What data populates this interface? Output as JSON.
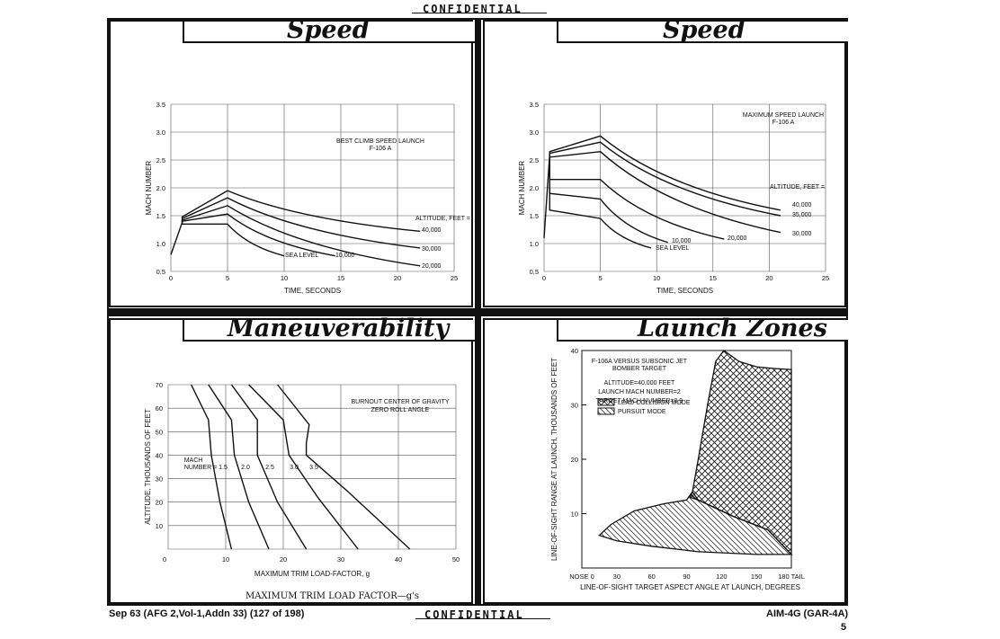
{
  "header": {
    "classification": "CONFIDENTIAL"
  },
  "footer": {
    "classification": "CONFIDENTIAL",
    "left": "Sep 63 (AFG 2,Vol-1,Addn 33) (127 of 198)",
    "right": "AIM-4G (GAR-4A)",
    "page": "5"
  },
  "panels": {
    "speed_left_title": "Speed",
    "speed_right_title": "Speed",
    "maneuver_title": "Maneuverability",
    "launch_title": "Launch Zones",
    "maneuver_caption": "MAXIMUM TRIM LOAD FACTOR—g's"
  },
  "chart_data": [
    {
      "type": "line",
      "title": "Speed",
      "note": [
        "BEST CLIMB SPEED LAUNCH",
        "F-106 A"
      ],
      "xlabel": "TIME, SECONDS",
      "ylabel": "MACH NUMBER",
      "xlim": [
        0,
        25
      ],
      "ylim": [
        0.5,
        3.5
      ],
      "xticks": [
        "0",
        "5",
        "10",
        "15",
        "20",
        "25"
      ],
      "yticks": [
        "0.5",
        "1.0",
        "1.5",
        "2.0",
        "2.5",
        "3.0",
        "3.5"
      ],
      "legend_title": "ALTITUDE, FEET =",
      "series": [
        {
          "name": "40,000",
          "x": [
            1,
            5,
            22
          ],
          "y": [
            1.48,
            1.95,
            1.22
          ]
        },
        {
          "name": "30,000",
          "x": [
            1,
            5,
            22
          ],
          "y": [
            1.45,
            1.82,
            0.92
          ]
        },
        {
          "name": "20,000",
          "x": [
            1,
            5,
            22
          ],
          "y": [
            1.42,
            1.68,
            0.6
          ]
        },
        {
          "name": "10,000",
          "x": [
            1,
            5,
            14.5
          ],
          "y": [
            1.4,
            1.53,
            0.78
          ]
        },
        {
          "name": "SEA LEVEL",
          "x": [
            1,
            5,
            10
          ],
          "y": [
            1.35,
            1.35,
            0.78
          ]
        }
      ],
      "initial": {
        "x": [
          0,
          1
        ],
        "y": [
          0.8,
          1.38
        ]
      }
    },
    {
      "type": "line",
      "title": "Speed",
      "note": [
        "MAXIMUM SPEED LAUNCH",
        "F-106 A"
      ],
      "xlabel": "TIME, SECONDS",
      "ylabel": "MACH NUMBER",
      "xlim": [
        0,
        25
      ],
      "ylim": [
        0.5,
        3.5
      ],
      "xticks": [
        "0",
        "5",
        "10",
        "15",
        "20",
        "25"
      ],
      "yticks": [
        "0.5",
        "1.0",
        "1.5",
        "2.0",
        "2.5",
        "3.0",
        "3.5"
      ],
      "legend_title": "ALTITUDE, FEET =",
      "series": [
        {
          "name": "40,000",
          "x": [
            0.5,
            5,
            21
          ],
          "y": [
            2.65,
            2.93,
            1.6
          ]
        },
        {
          "name": "35,000",
          "x": [
            0.5,
            5,
            21
          ],
          "y": [
            2.62,
            2.82,
            1.5
          ]
        },
        {
          "name": "30,000",
          "x": [
            0.5,
            5,
            21
          ],
          "y": [
            2.55,
            2.65,
            1.2
          ]
        },
        {
          "name": "20,000",
          "x": [
            0.5,
            5,
            16
          ],
          "y": [
            2.15,
            2.15,
            1.08
          ]
        },
        {
          "name": "10,000",
          "x": [
            0.5,
            5,
            11
          ],
          "y": [
            1.9,
            1.8,
            1.02
          ]
        },
        {
          "name": "SEA LEVEL",
          "x": [
            0.5,
            5,
            9.5
          ],
          "y": [
            1.6,
            1.45,
            0.92
          ]
        }
      ],
      "initial": {
        "x": [
          0,
          0.5
        ],
        "y": [
          1.1,
          2.6
        ]
      }
    },
    {
      "type": "line",
      "title": "Maneuverability",
      "note": [
        "BURNOUT CENTER OF GRAVITY",
        "ZERO ROLL ANGLE"
      ],
      "xlabel": "MAXIMUM TRIM LOAD-FACTOR, g",
      "ylabel": "ALTITUDE, THOUSANDS OF FEET",
      "xlim": [
        0,
        50
      ],
      "ylim": [
        0,
        70
      ],
      "xticks": [
        "10",
        "20",
        "30",
        "40",
        "50"
      ],
      "yticks": [
        "10",
        "20",
        "30",
        "40",
        "50",
        "60",
        "70"
      ],
      "legend_title": "MACH NUMBER =",
      "series": [
        {
          "name": "1.5",
          "x": [
            4,
            7,
            7.5,
            9,
            11
          ],
          "y": [
            70,
            55,
            40,
            20,
            0
          ]
        },
        {
          "name": "2.0",
          "x": [
            7,
            11,
            11.5,
            14,
            17.5
          ],
          "y": [
            70,
            55,
            40,
            20,
            0
          ]
        },
        {
          "name": "2.5",
          "x": [
            11,
            15.5,
            15.5,
            19,
            24
          ],
          "y": [
            70,
            55,
            40,
            20,
            0
          ]
        },
        {
          "name": "3.0",
          "x": [
            14,
            20,
            21,
            26,
            33
          ],
          "y": [
            70,
            55,
            40,
            22,
            0
          ]
        },
        {
          "name": "3.5",
          "x": [
            19,
            24.5,
            24,
            24,
            31,
            42
          ],
          "y": [
            70,
            53,
            45,
            40,
            25,
            0
          ]
        }
      ]
    },
    {
      "type": "area",
      "title": "Launch Zones",
      "note": [
        "F-106A VERSUS SUBSONIC JET",
        "BOMBER TARGET",
        "ALTITUDE=40,000 FEET",
        "LAUNCH MACH NUMBER=2",
        "TARGET MACH NUMBER=0.9"
      ],
      "legend": [
        "LEAD COLLISION MODE",
        "PURSUIT MODE"
      ],
      "xlabel": "LINE-OF-SIGHT TARGET ASPECT ANGLE AT LAUNCH, DEGREES",
      "ylabel": "LINE-OF-SIGHT RANGE AT LAUNCH, THOUSANDS OF FEET",
      "xlim": [
        0,
        180
      ],
      "ylim": [
        0,
        40
      ],
      "xticks": [
        "NOSE 0",
        "30",
        "60",
        "90",
        "120",
        "150",
        "180 TAIL"
      ],
      "yticks": [
        "10",
        "20",
        "30",
        "40"
      ],
      "series": [
        {
          "name": "LEAD COLLISION MODE",
          "x": [
            95,
            100,
            108,
            115,
            122,
            135,
            150,
            165,
            180,
            180,
            160,
            130,
            100,
            93,
            95
          ],
          "y": [
            14,
            20,
            30,
            38,
            40,
            38,
            37,
            36.7,
            36.5,
            2.5,
            7,
            9.5,
            12.5,
            13,
            14
          ]
        },
        {
          "name": "PURSUIT MODE",
          "x": [
            15,
            25,
            45,
            70,
            90,
            95,
            100,
            130,
            160,
            180,
            150,
            100,
            60,
            30,
            15
          ],
          "y": [
            6,
            8,
            10.5,
            11.8,
            12.5,
            14,
            12.5,
            9.5,
            7,
            2.5,
            2.5,
            3,
            4,
            5,
            6
          ]
        }
      ]
    }
  ]
}
